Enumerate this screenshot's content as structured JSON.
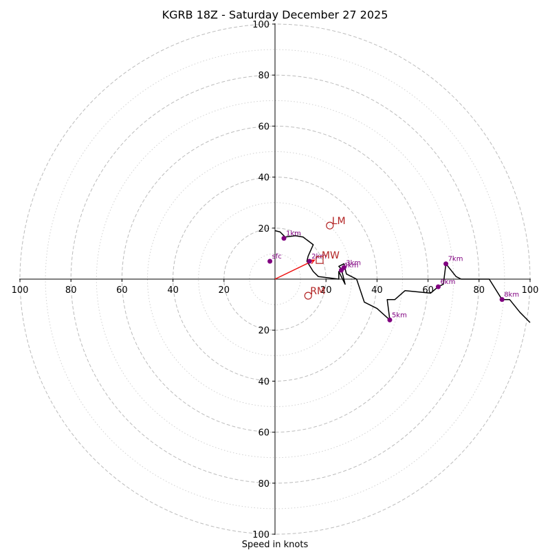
{
  "chart_data": {
    "type": "hodograph",
    "title": "KGRB 18Z - Saturday December 27 2025",
    "xlabel": "Speed in knots",
    "max_speed": 100,
    "major_rings": [
      20,
      40,
      60,
      80,
      100
    ],
    "minor_rings": [
      10,
      30,
      50,
      70,
      90
    ],
    "tick_labels": {
      "x_left": [
        "100",
        "80",
        "60",
        "40",
        "20"
      ],
      "x_right": [
        "20",
        "40",
        "60",
        "80",
        "100"
      ],
      "y_up": [
        "20",
        "40",
        "60",
        "80",
        "100"
      ],
      "y_down": [
        "20",
        "40",
        "60",
        "80",
        "100"
      ]
    },
    "tick_values": [
      20,
      40,
      60,
      80,
      100
    ],
    "wind_profile": [
      [
        0,
        19
      ],
      [
        2,
        18.5
      ],
      [
        4,
        16.5
      ],
      [
        8,
        17
      ],
      [
        11,
        16.5
      ],
      [
        15,
        13.5
      ],
      [
        13,
        9
      ],
      [
        12.5,
        7
      ],
      [
        15,
        3
      ],
      [
        17,
        1
      ],
      [
        21,
        0.5
      ],
      [
        25,
        0
      ],
      [
        25,
        3
      ],
      [
        27.5,
        -2
      ],
      [
        26,
        4
      ],
      [
        25,
        5
      ],
      [
        27,
        6
      ],
      [
        28,
        2
      ],
      [
        32,
        0
      ],
      [
        35,
        -9
      ],
      [
        40,
        -11.5
      ],
      [
        45,
        -16
      ],
      [
        44,
        -8
      ],
      [
        47,
        -8
      ],
      [
        51,
        -4.5
      ],
      [
        61,
        -5.5
      ],
      [
        64,
        -3
      ],
      [
        66,
        -2
      ],
      [
        67,
        6
      ],
      [
        71,
        1
      ],
      [
        73,
        0
      ],
      [
        84,
        0
      ],
      [
        89,
        -8
      ],
      [
        92,
        -8
      ],
      [
        96,
        -13
      ],
      [
        100,
        -17
      ]
    ],
    "height_markers": [
      {
        "label": "sfc",
        "u": -2,
        "v": 7
      },
      {
        "label": "1km",
        "u": 3.5,
        "v": 16
      },
      {
        "label": "2km",
        "u": 13.5,
        "v": 7
      },
      {
        "label": "3km",
        "u": 27,
        "v": 4.5
      },
      {
        "label": "4km",
        "u": 26,
        "v": 3.5
      },
      {
        "label": "5km",
        "u": 45,
        "v": -16
      },
      {
        "label": "6km",
        "u": 64,
        "v": -3
      },
      {
        "label": "7km",
        "u": 67,
        "v": 6
      },
      {
        "label": "8km",
        "u": 89,
        "v": -8
      }
    ],
    "storm_motion": [
      {
        "label": "LM",
        "u": 21.5,
        "v": 21,
        "marker": "circle"
      },
      {
        "label": "MW",
        "u": 17.5,
        "v": 7.5,
        "marker": "square"
      },
      {
        "label": "RM",
        "u": 13,
        "v": -6.5,
        "marker": "circle"
      }
    ],
    "shear_vector": {
      "u": 15.5,
      "v": 7.5
    },
    "colors": {
      "profile": "#000000",
      "height_marker": "#800080",
      "storm_motion": "#b22222",
      "shear_vector": "#ee1111",
      "ring": "#bbbbbb",
      "axis": "#000000"
    }
  }
}
